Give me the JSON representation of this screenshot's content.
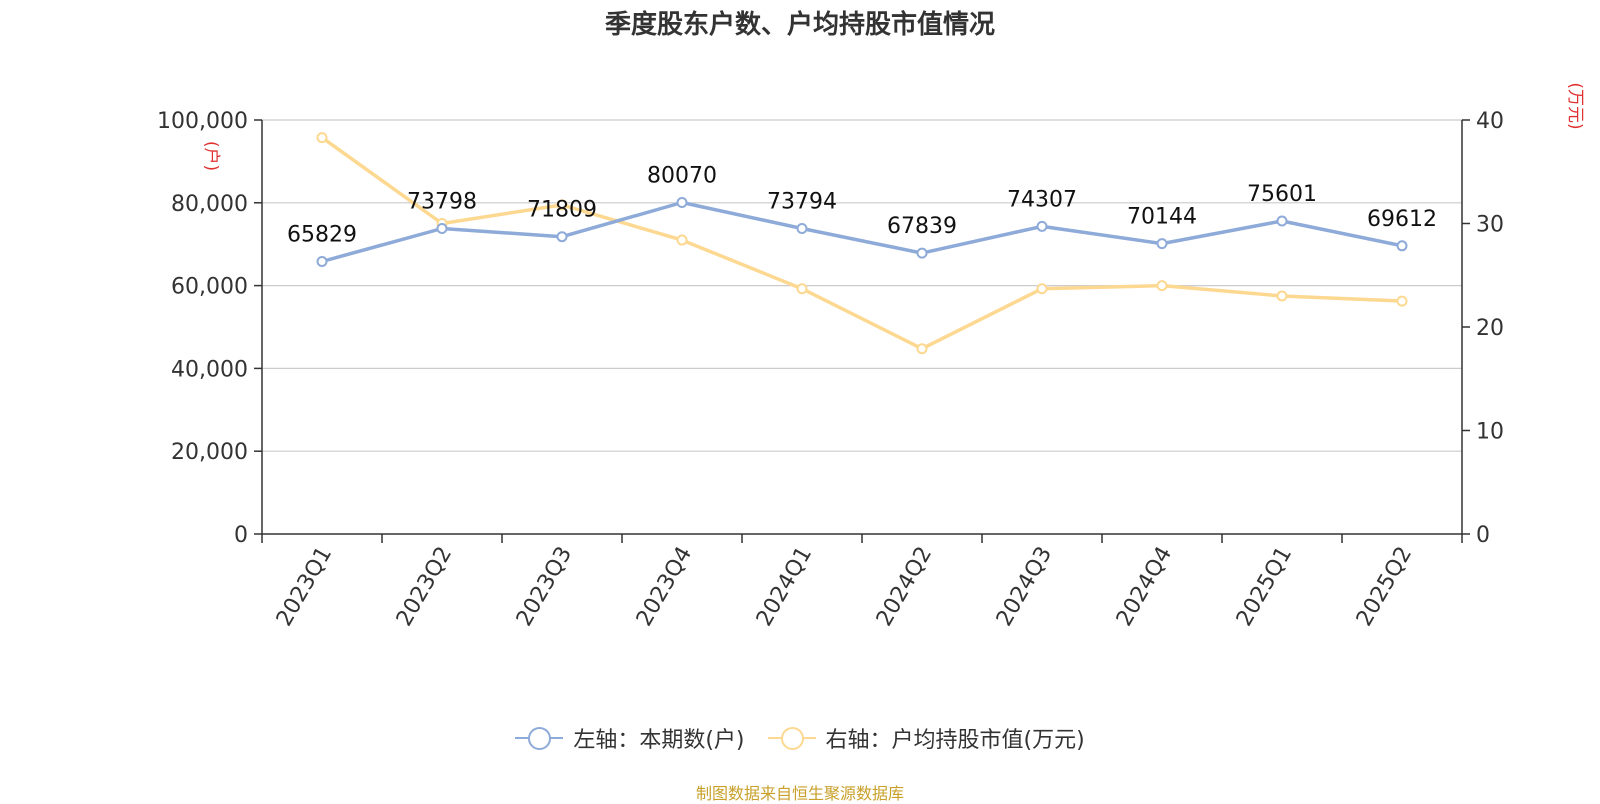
{
  "title": "季度股东户数、户均持股市值情况",
  "source": "制图数据来自恒生聚源数据库",
  "legend": {
    "left": "左轴：本期数(户)",
    "right": "右轴：户均持股市值(万元)"
  },
  "chart_data": {
    "type": "line",
    "title": "季度股东户数、户均持股市值情况",
    "categories": [
      "2023Q1",
      "2023Q2",
      "2023Q3",
      "2023Q4",
      "2024Q1",
      "2024Q2",
      "2024Q3",
      "2024Q4",
      "2025Q1",
      "2025Q2"
    ],
    "y_left": {
      "unit": "(户)",
      "min": 0,
      "max": 100000,
      "ticks": [
        "0",
        "20,000",
        "40,000",
        "60,000",
        "80,000",
        "100,000"
      ]
    },
    "y_right": {
      "unit": "(万元)",
      "min": 0,
      "max": 40,
      "ticks": [
        "0",
        "10",
        "20",
        "30",
        "40"
      ]
    },
    "grid": true,
    "legend_position": "bottom",
    "series": [
      {
        "name": "左轴：本期数(户)",
        "axis": "left",
        "color": "#8eaad8",
        "values": [
          65829,
          73798,
          71809,
          80070,
          73794,
          67839,
          74307,
          70144,
          75601,
          69612
        ],
        "labels": [
          "65829",
          "73798",
          "71809",
          "80070",
          "73794",
          "67839",
          "74307",
          "70144",
          "75601",
          "69612"
        ]
      },
      {
        "name": "右轴：户均持股市值(万元)",
        "axis": "right",
        "color": "#fdd891",
        "values": [
          38.3,
          30.0,
          31.8,
          28.4,
          23.7,
          17.9,
          23.7,
          24.0,
          23.0,
          22.5
        ]
      }
    ]
  }
}
